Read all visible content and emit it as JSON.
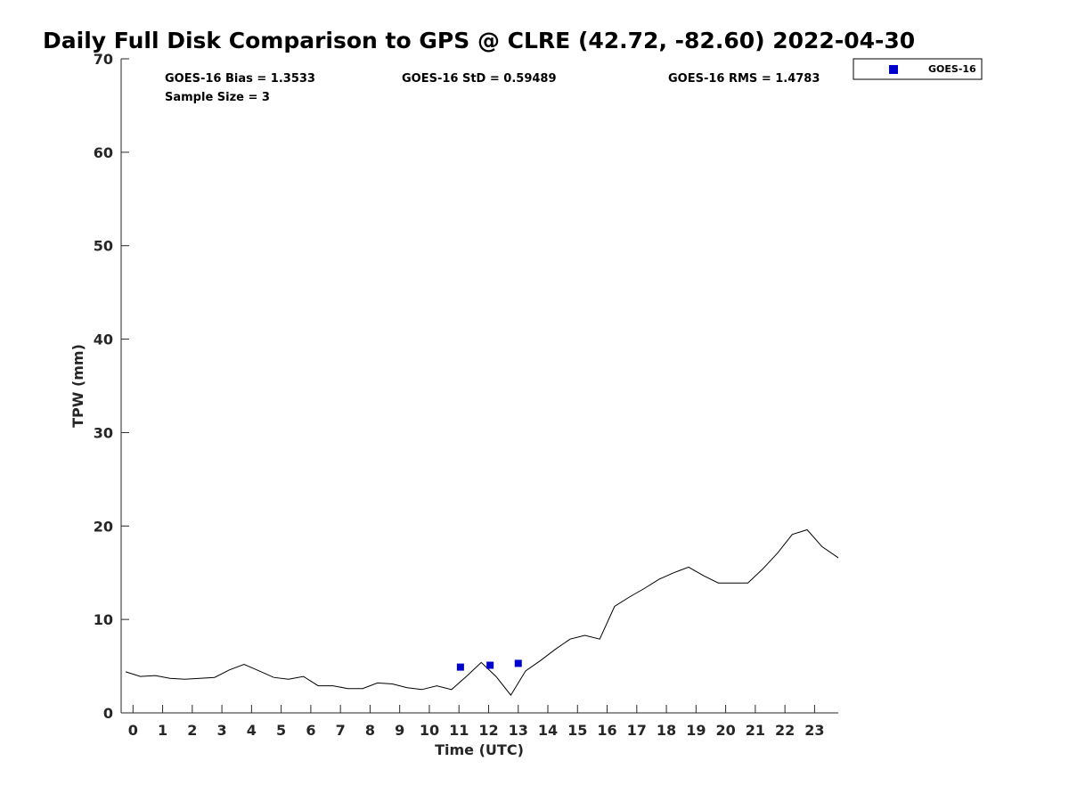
{
  "chart_data": {
    "type": "line",
    "title": "Daily Full Disk Comparison to GPS @ CLRE (42.72, -82.60) 2022-04-30",
    "xlabel": "Time (UTC)",
    "ylabel": "TPW (mm)",
    "xlim": [
      -0.4,
      23.8
    ],
    "ylim": [
      0,
      70
    ],
    "x_ticks": [
      0,
      1,
      2,
      3,
      4,
      5,
      6,
      7,
      8,
      9,
      10,
      11,
      12,
      13,
      14,
      15,
      16,
      17,
      18,
      19,
      20,
      21,
      22,
      23
    ],
    "y_ticks": [
      0,
      10,
      20,
      30,
      40,
      50,
      60,
      70
    ],
    "grid": false,
    "legend_position": "top-right-outside",
    "stats": {
      "bias": "GOES-16 Bias = 1.3533",
      "std": "GOES-16 StD = 0.59489",
      "rms": "GOES-16 RMS = 1.4783",
      "sample_size": "Sample Size = 3"
    },
    "series": [
      {
        "kind": "line",
        "color": "#000000",
        "x": [
          -0.25,
          0.25,
          0.75,
          1.25,
          1.75,
          2.25,
          2.75,
          3.25,
          3.75,
          4.25,
          4.75,
          5.25,
          5.75,
          6.25,
          6.75,
          7.25,
          7.75,
          8.25,
          8.75,
          9.25,
          9.75,
          10.25,
          10.75,
          11.25,
          11.75,
          12.25,
          12.75,
          13.25,
          13.75,
          14.25,
          14.75,
          15.25,
          15.75,
          16.25,
          16.75,
          17.25,
          17.75,
          18.25,
          18.75,
          19.25,
          19.75,
          20.25,
          20.75,
          21.25,
          21.75,
          22.25,
          22.75,
          23.25,
          23.8
        ],
        "y": [
          4.4,
          3.9,
          4.0,
          3.7,
          3.6,
          3.7,
          3.8,
          4.6,
          5.2,
          4.5,
          3.8,
          3.6,
          3.9,
          2.9,
          2.9,
          2.6,
          2.6,
          3.2,
          3.1,
          2.7,
          2.5,
          2.9,
          2.5,
          3.9,
          5.4,
          3.9,
          1.9,
          4.5,
          5.6,
          6.8,
          7.9,
          8.3,
          7.9,
          11.4,
          12.4,
          13.3,
          14.3,
          15.0,
          15.6,
          14.7,
          13.9,
          13.9,
          13.9,
          15.4,
          17.1,
          19.1,
          19.6,
          17.8,
          16.6
        ]
      },
      {
        "name": "GOES-16",
        "kind": "marker",
        "color": "#0000cc",
        "x": [
          11.05,
          12.05,
          13.0
        ],
        "y": [
          4.9,
          5.1,
          5.3
        ]
      }
    ]
  }
}
